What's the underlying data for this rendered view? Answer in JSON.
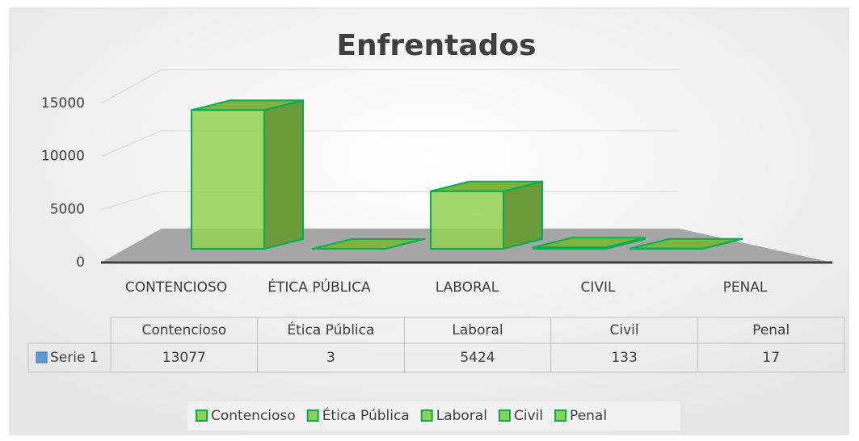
{
  "chart_data": {
    "type": "bar",
    "title": "Enfrentados",
    "categories": [
      "CONTENCIOSO",
      "ÉTICA PÚBLICA",
      "LABORAL",
      "CIVIL",
      "PENAL"
    ],
    "point_labels": [
      "Contencioso",
      "Ética Pública",
      "Laboral",
      "Civil",
      "Penal"
    ],
    "series": [
      {
        "name": "Serie 1",
        "color": "#5b9bd5",
        "values": [
          13077,
          3,
          5424,
          133,
          17
        ]
      }
    ],
    "point_color": "#92d050",
    "edge_color": "#00b050",
    "ylim": [
      0,
      15000
    ],
    "yticks": [
      0,
      5000,
      10000,
      15000
    ],
    "grid": true,
    "legend": "bottom"
  }
}
